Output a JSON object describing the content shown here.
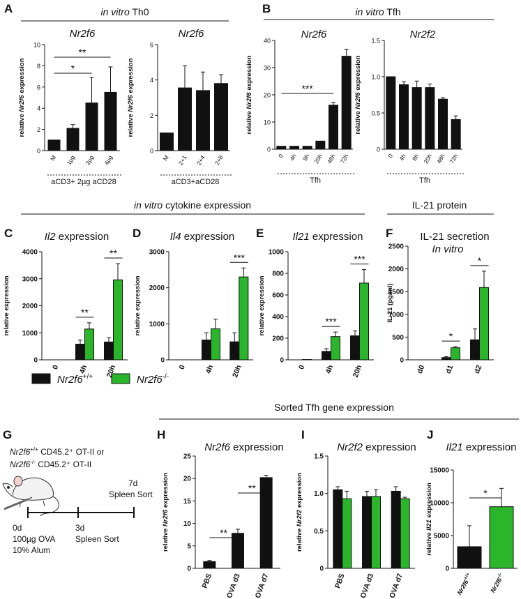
{
  "colors": {
    "wt": "#111111",
    "ko": "#2bb52b",
    "text": "#111111",
    "ko_text": "#22a022"
  },
  "headers": {
    "A_title_it": "in vitro",
    "A_title_rest": " Th0",
    "B_title_it": "in vitro",
    "B_title_rest": " Tfh",
    "cyto_title_it": "in vitro",
    "cyto_title_rest": " cytokine expression",
    "il21_protein": "IL-21 protein",
    "sorted": "Sorted Tfh gene expression"
  },
  "panel_letters": [
    "A",
    "B",
    "C",
    "D",
    "E",
    "F",
    "G",
    "H",
    "I",
    "J"
  ],
  "legend": {
    "wt_gene": "Nr2f6",
    "wt_sup": "+/+",
    "ko_gene": "Nr2f6",
    "ko_sup": "-/-"
  },
  "experiment": {
    "line1_gene": "Nr2f6",
    "line1_sup": "+/+",
    "line1_rest": " CD45.2⁺ OT-II or",
    "line2_gene": "Nr2f6",
    "line2_sup": "-/-",
    "line2_rest": " CD45.2⁺ OT-II",
    "d0": "0d",
    "d0_dose": "100µg OVA",
    "d0_alum": "10% Alum",
    "d3": "3d",
    "d3_sort": "Spleen Sort",
    "d7": "7d",
    "d7_sort": "Spleen Sort"
  },
  "chart_data": [
    {
      "id": "A1",
      "type": "bar",
      "title": "Nr2f6",
      "title_italic": true,
      "ylabel_pre": "relative ",
      "ylabel_gene": "Nr2f6",
      "ylabel_post": " expression",
      "ylim": [
        0,
        10
      ],
      "yticks": [
        "0",
        "2",
        "4",
        "6",
        "8",
        "10"
      ],
      "categories": [
        "M",
        "1µg",
        "2µg",
        "4µg"
      ],
      "series": [
        {
          "name": "Nr2f6+/+",
          "values": [
            1.0,
            2.1,
            4.5,
            5.5
          ],
          "errors": [
            0,
            0.35,
            2.4,
            2.4
          ]
        }
      ],
      "group_label": "aCD3+ 2µg aCD28",
      "significance": [
        {
          "from": 0,
          "to": 2,
          "label": "*"
        },
        {
          "from": 0,
          "to": 3,
          "label": "**"
        }
      ]
    },
    {
      "id": "A2",
      "type": "bar",
      "title": "Nr2f6",
      "title_italic": true,
      "ylabel_pre": "relative ",
      "ylabel_gene": "Nr2f6",
      "ylabel_post": " expression",
      "ylim": [
        0,
        6
      ],
      "yticks": [
        "0",
        "2",
        "4",
        "6"
      ],
      "categories": [
        "M",
        "2+1",
        "2+4",
        "2+8"
      ],
      "series": [
        {
          "name": "Nr2f6+/+",
          "values": [
            1.0,
            3.55,
            3.4,
            3.8
          ],
          "errors": [
            0,
            1.25,
            1.05,
            0.5
          ]
        }
      ],
      "group_label": "aCD3+aCD28"
    },
    {
      "id": "B1",
      "type": "bar",
      "title": "Nr2f6",
      "title_italic": true,
      "ylabel_pre": "relative ",
      "ylabel_gene": "Nr2f6",
      "ylabel_post": " expression",
      "ylim": [
        0,
        40
      ],
      "yticks": [
        "0",
        "10",
        "20",
        "30",
        "40"
      ],
      "categories": [
        "0",
        "4h",
        "8h",
        "20h",
        "48h",
        "72h"
      ],
      "series": [
        {
          "name": "Nr2f6+/+",
          "values": [
            1.1,
            1.1,
            1.1,
            3.0,
            16.2,
            34.2
          ],
          "errors": [
            0,
            0,
            0,
            0,
            1.0,
            2.6
          ]
        }
      ],
      "group_label": "Tfh",
      "significance": [
        {
          "from": 0,
          "to": 4,
          "label": "***"
        }
      ]
    },
    {
      "id": "B2",
      "type": "bar",
      "title": "Nr2f2",
      "title_italic": true,
      "ylabel_pre": "relative ",
      "ylabel_gene": "Nr2f6",
      "ylabel_post": " expression",
      "ylim": [
        0,
        1.5
      ],
      "yticks": [
        "0",
        "0.5",
        "1.0",
        "1.5"
      ],
      "categories": [
        "0",
        "4h",
        "8h",
        "20h",
        "48h",
        "72h"
      ],
      "series": [
        {
          "name": "Nr2f6+/+",
          "values": [
            1.0,
            0.89,
            0.85,
            0.85,
            0.69,
            0.41
          ],
          "errors": [
            0,
            0.04,
            0.09,
            0.05,
            0.02,
            0.05
          ]
        }
      ],
      "group_label": "Tfh"
    },
    {
      "id": "C",
      "type": "bar",
      "title_gene": "Il2",
      "title_rest": " expression",
      "ylabel": "relative expression",
      "ylim": [
        0,
        4000
      ],
      "yticks": [
        "0",
        "1000",
        "2000",
        "3000",
        "4000"
      ],
      "categories": [
        "0",
        "4h",
        "20h"
      ],
      "series": [
        {
          "name": "Nr2f6+/+",
          "values": [
            0,
            580,
            660
          ],
          "errors": [
            0,
            150,
            160
          ]
        },
        {
          "name": "Nr2f6-/-",
          "values": [
            0,
            1140,
            2960
          ],
          "errors": [
            0,
            230,
            600
          ]
        }
      ],
      "significance": [
        {
          "group": 1,
          "label": "**"
        },
        {
          "group": 2,
          "label": "**"
        }
      ]
    },
    {
      "id": "D",
      "type": "bar",
      "title_gene": "Il4",
      "title_rest": " expression",
      "ylabel": "relative expression",
      "ylim": [
        0,
        3000
      ],
      "yticks": [
        "0",
        "1000",
        "2000",
        "3000"
      ],
      "categories": [
        "0",
        "4h",
        "20h"
      ],
      "series": [
        {
          "name": "Nr2f6+/+",
          "values": [
            0,
            550,
            500
          ],
          "errors": [
            0,
            200,
            250
          ]
        },
        {
          "name": "Nr2f6-/-",
          "values": [
            0,
            860,
            2300
          ],
          "errors": [
            0,
            270,
            250
          ]
        }
      ],
      "significance": [
        {
          "group": 2,
          "label": "***"
        }
      ]
    },
    {
      "id": "E",
      "type": "bar",
      "title_gene": "Il21",
      "title_rest": " expression",
      "ylabel": "relative expression",
      "ylim": [
        0,
        1000
      ],
      "yticks": [
        "0",
        "200",
        "400",
        "600",
        "800",
        "1000"
      ],
      "categories": [
        "0",
        "4h",
        "20h"
      ],
      "series": [
        {
          "name": "Nr2f6+/+",
          "values": [
            0,
            78,
            222
          ],
          "errors": [
            0,
            25,
            45
          ]
        },
        {
          "name": "Nr2f6-/-",
          "values": [
            3,
            215,
            710
          ],
          "errors": [
            0,
            42,
            125
          ]
        }
      ],
      "significance": [
        {
          "group": 1,
          "label": "***"
        },
        {
          "group": 2,
          "label": "***"
        }
      ]
    },
    {
      "id": "F",
      "type": "bar",
      "title": "IL-21 secretion",
      "subtitle": "In vitro",
      "ylabel": "IL-21 (pg/ml)",
      "ylim": [
        0,
        2500
      ],
      "yticks": [
        "0",
        "500",
        "1000",
        "1500",
        "2000",
        "2500"
      ],
      "categories": [
        "d0",
        "d1",
        "d2"
      ],
      "series": [
        {
          "name": "Nr2f6+/+",
          "values": [
            0,
            50,
            440
          ],
          "errors": [
            0,
            20,
            240
          ]
        },
        {
          "name": "Nr2f6-/-",
          "values": [
            0,
            265,
            1590
          ],
          "errors": [
            0,
            25,
            360
          ]
        }
      ],
      "significance": [
        {
          "group": 1,
          "label": "*"
        },
        {
          "group": 2,
          "label": "*"
        }
      ]
    },
    {
      "id": "H",
      "type": "bar",
      "title_gene": "Nr2f6",
      "title_rest": " expression",
      "ylabel_pre": "relative ",
      "ylabel_gene": "Nr2f6",
      "ylabel_post": " expression",
      "ylim": [
        0,
        25
      ],
      "yticks": [
        "0",
        "5",
        "10",
        "15",
        "20",
        "25"
      ],
      "categories": [
        "PBS",
        "OVA d3",
        "OVA d7"
      ],
      "series": [
        {
          "name": "Nr2f6+/+",
          "values": [
            1.5,
            7.8,
            20.2
          ],
          "errors": [
            0.25,
            0.9,
            0.5
          ]
        }
      ],
      "significance": [
        {
          "from": 0,
          "to": 1,
          "label": "**"
        },
        {
          "from": 1,
          "to": 2,
          "label": "**"
        }
      ]
    },
    {
      "id": "I",
      "type": "bar",
      "title_gene": "Nr2f2",
      "title_rest": " expression",
      "ylabel_pre": "relative ",
      "ylabel_gene": "Nr2f2",
      "ylabel_post": " expression",
      "ylim": [
        0,
        1.5
      ],
      "yticks": [
        "0",
        "0.5",
        "1.0",
        "1.5"
      ],
      "categories": [
        "PBS",
        "OVA d3",
        "OVA d7"
      ],
      "series": [
        {
          "name": "Nr2f6+/+",
          "values": [
            1.05,
            0.96,
            1.03
          ],
          "errors": [
            0.04,
            0.07,
            0.06
          ]
        },
        {
          "name": "Nr2f6-/-",
          "values": [
            0.93,
            0.96,
            0.93
          ],
          "errors": [
            0.1,
            0.09,
            0.02
          ]
        }
      ]
    },
    {
      "id": "J",
      "type": "bar",
      "title_gene": "Il21",
      "title_rest": " expression",
      "ylabel_pre": "relative ",
      "ylabel_gene": "Il21",
      "ylabel_post": " expression",
      "ylim": [
        0,
        15000
      ],
      "yticks": [
        "0",
        "5000",
        "10000",
        "15000"
      ],
      "categories": [
        "Nr2f6+/+",
        "Nr2f6-/-"
      ],
      "category_genes": [
        "Nr2f6",
        "Nr2f6"
      ],
      "category_sups": [
        "+/+",
        "-/-"
      ],
      "series": [
        {
          "name": "Nr2f6+/+",
          "values": [
            3300,
            null
          ],
          "errors": [
            3200,
            0
          ]
        },
        {
          "name": "Nr2f6-/-",
          "values": [
            null,
            9400
          ],
          "errors": [
            0,
            2800
          ]
        }
      ],
      "significance": [
        {
          "from": 0,
          "to": 1,
          "label": "*"
        }
      ]
    }
  ]
}
